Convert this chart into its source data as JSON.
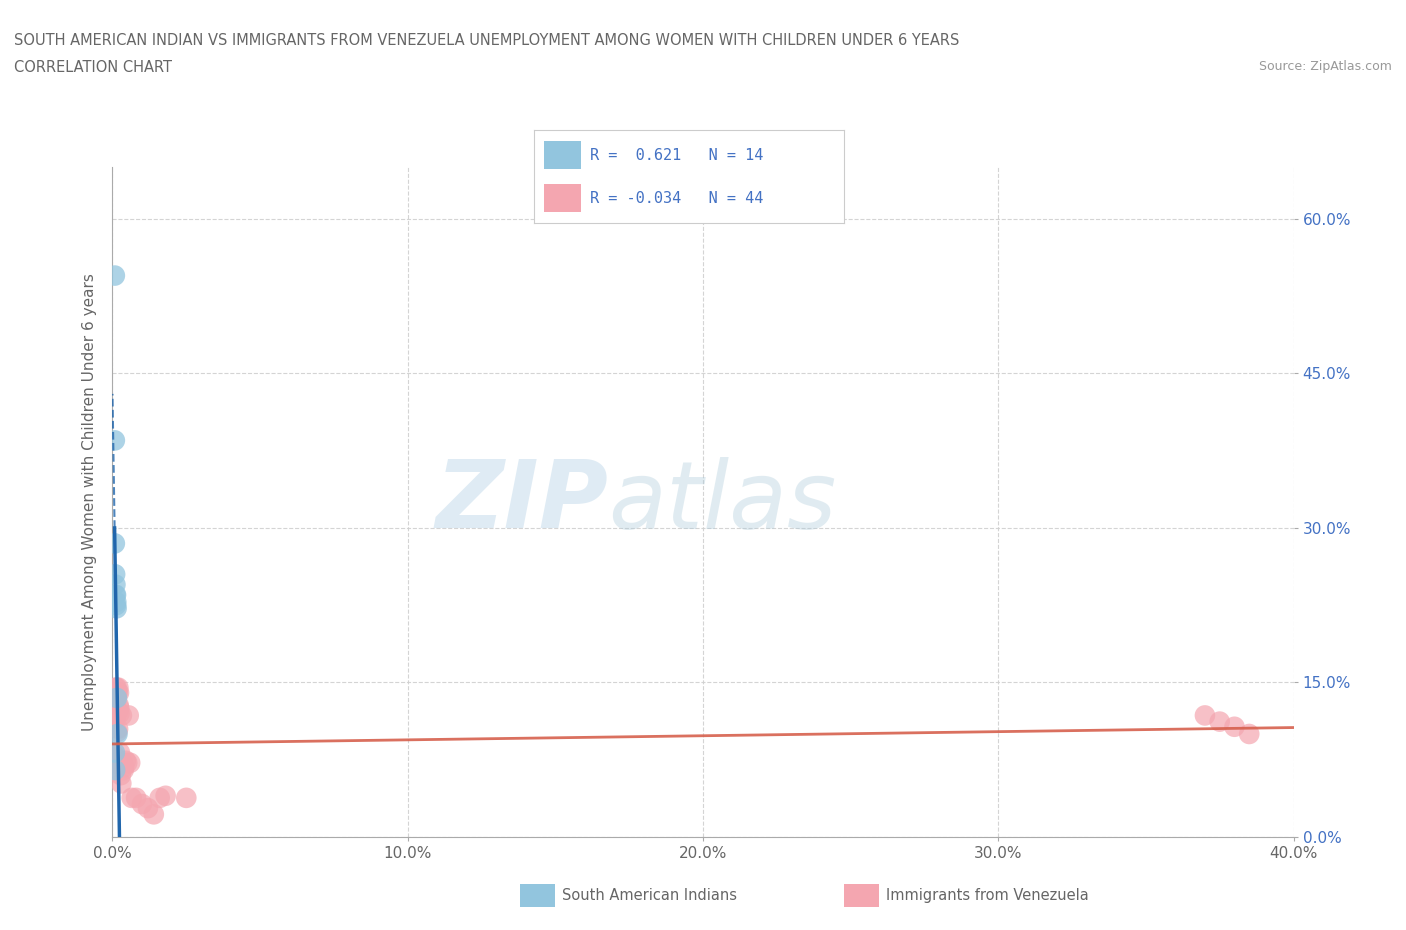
{
  "title_line1": "SOUTH AMERICAN INDIAN VS IMMIGRANTS FROM VENEZUELA UNEMPLOYMENT AMONG WOMEN WITH CHILDREN UNDER 6 YEARS",
  "title_line2": "CORRELATION CHART",
  "source": "Source: ZipAtlas.com",
  "ylabel": "Unemployment Among Women with Children Under 6 years",
  "xmin": 0.0,
  "xmax": 0.4,
  "ymin": 0.0,
  "ymax": 0.65,
  "xticks": [
    0.0,
    0.1,
    0.2,
    0.3,
    0.4
  ],
  "yticks": [
    0.0,
    0.15,
    0.3,
    0.45,
    0.6
  ],
  "ytick_labels_right": [
    "0.0%",
    "15.0%",
    "30.0%",
    "45.0%",
    "60.0%"
  ],
  "xtick_labels": [
    "0.0%",
    "10.0%",
    "20.0%",
    "30.0%",
    "40.0%"
  ],
  "R_blue": 0.621,
  "N_blue": 14,
  "R_pink": -0.034,
  "N_pink": 44,
  "blue_color": "#92c5de",
  "pink_color": "#f4a6b0",
  "blue_line_color": "#2166ac",
  "pink_line_color": "#d6604d",
  "watermark_zip": "ZIP",
  "watermark_atlas": "atlas",
  "blue_scatter_x": [
    0.0008,
    0.0008,
    0.0008,
    0.0009,
    0.001,
    0.001,
    0.0012,
    0.0012,
    0.0013,
    0.0014,
    0.0015,
    0.0017,
    0.0008,
    0.0009
  ],
  "blue_scatter_y": [
    0.545,
    0.385,
    0.285,
    0.255,
    0.245,
    0.235,
    0.235,
    0.225,
    0.228,
    0.222,
    0.135,
    0.1,
    0.082,
    0.065
  ],
  "pink_scatter_x": [
    0.0005,
    0.0006,
    0.0007,
    0.0008,
    0.0009,
    0.001,
    0.0011,
    0.0012,
    0.0013,
    0.0014,
    0.0015,
    0.0016,
    0.0017,
    0.0018,
    0.0019,
    0.002,
    0.0021,
    0.0022,
    0.0023,
    0.0024,
    0.0025,
    0.0026,
    0.0028,
    0.003,
    0.0032,
    0.0035,
    0.0038,
    0.004,
    0.0045,
    0.005,
    0.0055,
    0.006,
    0.0065,
    0.008,
    0.01,
    0.012,
    0.014,
    0.016,
    0.018,
    0.025,
    0.37,
    0.375,
    0.38,
    0.385
  ],
  "pink_scatter_y": [
    0.08,
    0.075,
    0.068,
    0.13,
    0.12,
    0.115,
    0.145,
    0.14,
    0.125,
    0.145,
    0.138,
    0.102,
    0.14,
    0.122,
    0.105,
    0.145,
    0.128,
    0.14,
    0.125,
    0.12,
    0.082,
    0.07,
    0.06,
    0.052,
    0.118,
    0.072,
    0.065,
    0.068,
    0.074,
    0.072,
    0.118,
    0.072,
    0.038,
    0.038,
    0.032,
    0.028,
    0.022,
    0.038,
    0.04,
    0.038,
    0.118,
    0.112,
    0.107,
    0.1
  ],
  "background_color": "#ffffff",
  "grid_color": "#d0d0d0",
  "tick_color": "#4472c4",
  "label_color": "#666666"
}
